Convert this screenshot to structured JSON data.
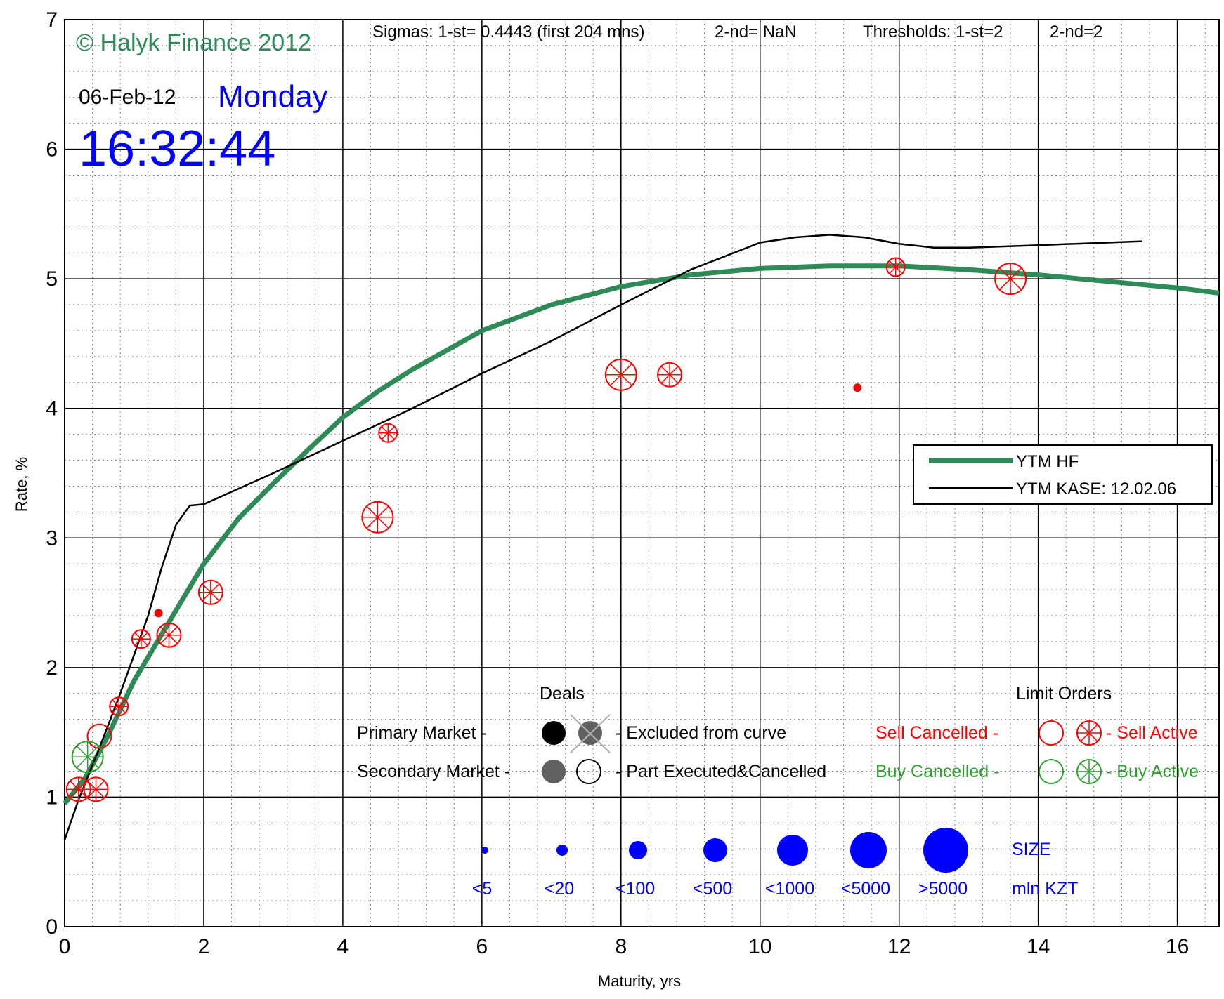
{
  "header": {
    "copyright": "© Halyk Finance 2012",
    "date": "06-Feb-12",
    "weekday": "Monday",
    "time": "16:32:44",
    "sigmas": "Sigmas: 1-st= 0.4443 (first 204 mns)",
    "sigma2": "2-nd= NaN",
    "thresholds": "Thresholds: 1-st=2",
    "threshold2": "2-nd=2"
  },
  "legend": {
    "hf": "YTM HF",
    "kase": "YTM KASE: 12.02.06"
  },
  "key": {
    "deals_title": "Deals",
    "limit_title": "Limit Orders",
    "primary": "Primary Market  -",
    "secondary": "Secondary Market -",
    "excluded": "- Excluded from curve",
    "part": "- Part Executed&Cancelled",
    "sell_cancelled": "Sell Cancelled -",
    "sell_active": "- Sell Active",
    "buy_cancelled": "Buy Cancelled -",
    "buy_active": "- Buy Active",
    "size_title": "SIZE",
    "size_unit": "mln KZT",
    "sizes": [
      "<5",
      "<20",
      "<100",
      "<500",
      "<1000",
      "<5000",
      ">5000"
    ]
  },
  "colors": {
    "hf_curve": "#2e8b57",
    "kase_curve": "#000000",
    "sell": "#ff0000",
    "buy": "#2ca02c",
    "size": "#0000ff",
    "date_time_blue": "#0000ff"
  },
  "chart_data": {
    "type": "line",
    "xlabel": "Maturity, yrs",
    "ylabel": "Rate, %",
    "xlim": [
      0,
      16.6
    ],
    "ylim": [
      0,
      7
    ],
    "x_ticks": [
      0,
      2,
      4,
      6,
      8,
      10,
      12,
      14,
      16
    ],
    "y_ticks": [
      0,
      1,
      2,
      3,
      4,
      5,
      6,
      7
    ],
    "grid": true,
    "legend_position": "right",
    "series": [
      {
        "name": "YTM HF",
        "style": "thick green line",
        "points": [
          [
            0,
            0.95
          ],
          [
            0.3,
            1.15
          ],
          [
            0.6,
            1.45
          ],
          [
            1.0,
            1.9
          ],
          [
            1.5,
            2.35
          ],
          [
            2.0,
            2.8
          ],
          [
            2.5,
            3.15
          ],
          [
            3.0,
            3.42
          ],
          [
            3.5,
            3.68
          ],
          [
            4.0,
            3.93
          ],
          [
            4.5,
            4.13
          ],
          [
            5.0,
            4.3
          ],
          [
            6.0,
            4.6
          ],
          [
            7.0,
            4.8
          ],
          [
            8.0,
            4.94
          ],
          [
            9.0,
            5.03
          ],
          [
            10.0,
            5.08
          ],
          [
            11.0,
            5.1
          ],
          [
            12.0,
            5.1
          ],
          [
            13.0,
            5.07
          ],
          [
            14.0,
            5.03
          ],
          [
            15.0,
            4.98
          ],
          [
            16.0,
            4.93
          ],
          [
            16.6,
            4.89
          ]
        ]
      },
      {
        "name": "YTM KASE: 12.02.06",
        "style": "thin black line",
        "points": [
          [
            0,
            0.67
          ],
          [
            0.2,
            0.98
          ],
          [
            0.5,
            1.38
          ],
          [
            0.8,
            1.8
          ],
          [
            1.0,
            2.1
          ],
          [
            1.2,
            2.4
          ],
          [
            1.4,
            2.78
          ],
          [
            1.6,
            3.1
          ],
          [
            1.8,
            3.25
          ],
          [
            2.0,
            3.26
          ],
          [
            2.5,
            3.38
          ],
          [
            3.0,
            3.5
          ],
          [
            4.0,
            3.75
          ],
          [
            5.0,
            4.0
          ],
          [
            6.0,
            4.27
          ],
          [
            7.0,
            4.52
          ],
          [
            8.0,
            4.8
          ],
          [
            9.0,
            5.07
          ],
          [
            10.0,
            5.28
          ],
          [
            10.5,
            5.32
          ],
          [
            11.0,
            5.34
          ],
          [
            11.5,
            5.32
          ],
          [
            12.0,
            5.27
          ],
          [
            12.5,
            5.24
          ],
          [
            13.0,
            5.24
          ],
          [
            14.0,
            5.26
          ],
          [
            15.0,
            5.28
          ],
          [
            15.5,
            5.29
          ]
        ]
      }
    ],
    "sell_active_orders": [
      {
        "x": 0.2,
        "y": 1.06,
        "size": "<500"
      },
      {
        "x": 0.45,
        "y": 1.06,
        "size": "<500"
      },
      {
        "x": 0.78,
        "y": 1.7,
        "size": "<100"
      },
      {
        "x": 1.1,
        "y": 2.22,
        "size": "<100"
      },
      {
        "x": 1.35,
        "y": 2.42,
        "size": "<5"
      },
      {
        "x": 1.5,
        "y": 2.25,
        "size": "<500"
      },
      {
        "x": 2.1,
        "y": 2.58,
        "size": "<500"
      },
      {
        "x": 4.5,
        "y": 3.16,
        "size": "<1000"
      },
      {
        "x": 4.65,
        "y": 3.81,
        "size": "<100"
      },
      {
        "x": 8.0,
        "y": 4.26,
        "size": "<1000"
      },
      {
        "x": 8.7,
        "y": 4.26,
        "size": "<500"
      },
      {
        "x": 11.4,
        "y": 4.16,
        "size": "<5"
      },
      {
        "x": 11.95,
        "y": 5.09,
        "size": "<100"
      },
      {
        "x": 13.6,
        "y": 5.0,
        "size": "<1000"
      }
    ],
    "sell_cancelled_orders": [
      {
        "x": 0.5,
        "y": 1.47,
        "size": "<500"
      }
    ],
    "buy_active_orders": [
      {
        "x": 0.33,
        "y": 1.31,
        "size": "<1000"
      }
    ]
  }
}
